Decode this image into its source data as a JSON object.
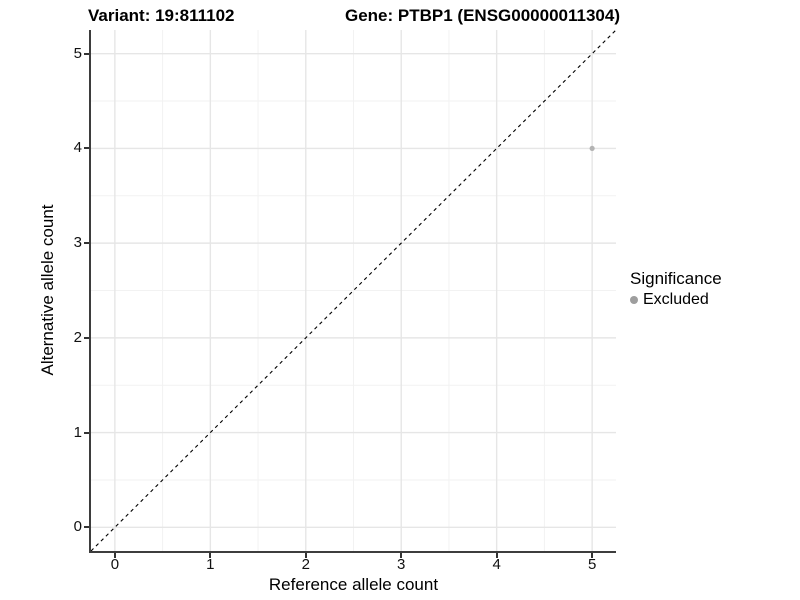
{
  "titles": {
    "variant": "Variant: 19:811102",
    "gene": "Gene: PTBP1 (ENSG00000011304)"
  },
  "axes": {
    "x_label": "Reference allele count",
    "y_label": "Alternative allele count"
  },
  "legend": {
    "title": "Significance",
    "items": [
      {
        "label": "Excluded",
        "color": "#9e9e9e"
      }
    ]
  },
  "colors": {
    "grid_major": "#e6e6e6",
    "grid_minor": "#f2f2f2",
    "axis_line": "#3d3d3d",
    "tick": "#333333",
    "identity_line": "#000000"
  },
  "chart_data": {
    "type": "scatter",
    "title": "Variant: 19:811102 | Gene: PTBP1 (ENSG00000011304)",
    "xlabel": "Reference allele count",
    "ylabel": "Alternative allele count",
    "xlim": [
      -0.25,
      5.25
    ],
    "ylim": [
      -0.25,
      5.25
    ],
    "x_ticks": [
      0,
      1,
      2,
      3,
      4,
      5
    ],
    "y_ticks": [
      0,
      1,
      2,
      3,
      4,
      5
    ],
    "minor_ticks": [
      0.5,
      1.5,
      2.5,
      3.5,
      4.5
    ],
    "grid": true,
    "legend_position": "right",
    "series": [
      {
        "name": "Excluded",
        "color": "#b3b3b3",
        "point_radius": 2.6,
        "points": [
          {
            "x": 5,
            "y": 4
          }
        ]
      }
    ],
    "reference_line": {
      "type": "identity",
      "style": "dashed",
      "from": [
        -0.25,
        -0.25
      ],
      "to": [
        5.25,
        5.25
      ]
    }
  }
}
